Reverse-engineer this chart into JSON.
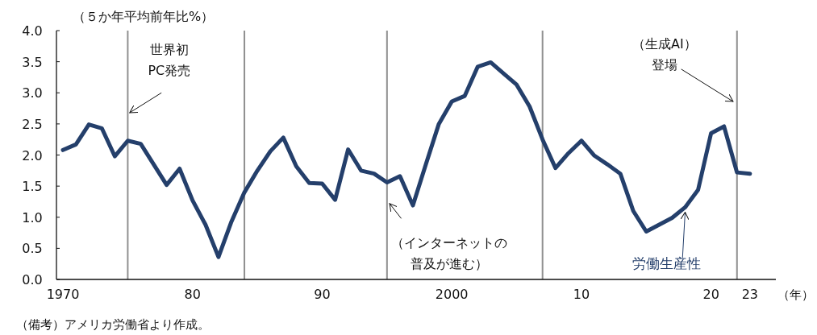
{
  "chart_data": {
    "type": "line",
    "ylabel": "（５か年平均前年比%）",
    "xlabel": "（年）",
    "x": [
      1970,
      1971,
      1972,
      1973,
      1974,
      1975,
      1976,
      1977,
      1978,
      1979,
      1980,
      1981,
      1982,
      1983,
      1984,
      1985,
      1986,
      1987,
      1988,
      1989,
      1990,
      1991,
      1992,
      1993,
      1994,
      1995,
      1996,
      1997,
      1998,
      1999,
      2000,
      2001,
      2002,
      2003,
      2004,
      2005,
      2006,
      2007,
      2008,
      2009,
      2010,
      2011,
      2012,
      2013,
      2014,
      2015,
      2016,
      2017,
      2018,
      2019,
      2020,
      2021,
      2022,
      2023
    ],
    "series": [
      {
        "name": "労働生産性",
        "color": "#243f6b",
        "values": [
          2.08,
          2.17,
          2.49,
          2.43,
          1.98,
          2.23,
          2.18,
          1.85,
          1.52,
          1.78,
          1.27,
          0.88,
          0.36,
          0.93,
          1.4,
          1.75,
          2.06,
          2.28,
          1.82,
          1.55,
          1.54,
          1.28,
          2.09,
          1.75,
          1.7,
          1.56,
          1.66,
          1.19,
          1.85,
          2.5,
          2.86,
          2.95,
          3.42,
          3.49,
          3.31,
          3.13,
          2.78,
          2.25,
          1.79,
          2.03,
          2.23,
          1.99,
          1.85,
          1.7,
          1.1,
          0.77,
          0.88,
          0.99,
          1.16,
          1.44,
          2.35,
          2.46,
          1.72,
          1.7
        ]
      }
    ],
    "xlim": [
      1969.5,
      2025
    ],
    "xticks": [
      1970,
      {
        "value": 1980,
        "label": "80"
      },
      {
        "value": 1990,
        "label": "90"
      },
      2000,
      {
        "value": 2010,
        "label": "10"
      },
      {
        "value": 2020,
        "label": "20"
      },
      {
        "value": 2023,
        "label": "23"
      }
    ],
    "ylim": [
      0,
      4
    ],
    "yticks": [
      {
        "value": 0,
        "label": "0.0"
      },
      0.5,
      {
        "value": 1,
        "label": "1.0"
      },
      1.5,
      {
        "value": 2,
        "label": "2.0"
      },
      2.5,
      {
        "value": 3,
        "label": "3.0"
      },
      3.5,
      {
        "value": 4,
        "label": "4.0"
      }
    ],
    "ref_lines": [
      {
        "axis": "x",
        "value": 1975,
        "label": "世界初PC発売",
        "color": "#909090"
      },
      {
        "axis": "x",
        "value": 1984,
        "color": "#909090"
      },
      {
        "axis": "x",
        "value": 1995,
        "label": "（インターネットの普及が進む）",
        "color": "#909090"
      },
      {
        "axis": "x",
        "value": 2007,
        "color": "#909090"
      },
      {
        "axis": "x",
        "value": 2022,
        "label": "（生成AI）登場",
        "color": "#909090"
      }
    ],
    "annotations": [
      "（備考）アメリカ労働省より作成。"
    ],
    "grid": false,
    "legend": false,
    "marker": "none",
    "line_style": "solid"
  }
}
